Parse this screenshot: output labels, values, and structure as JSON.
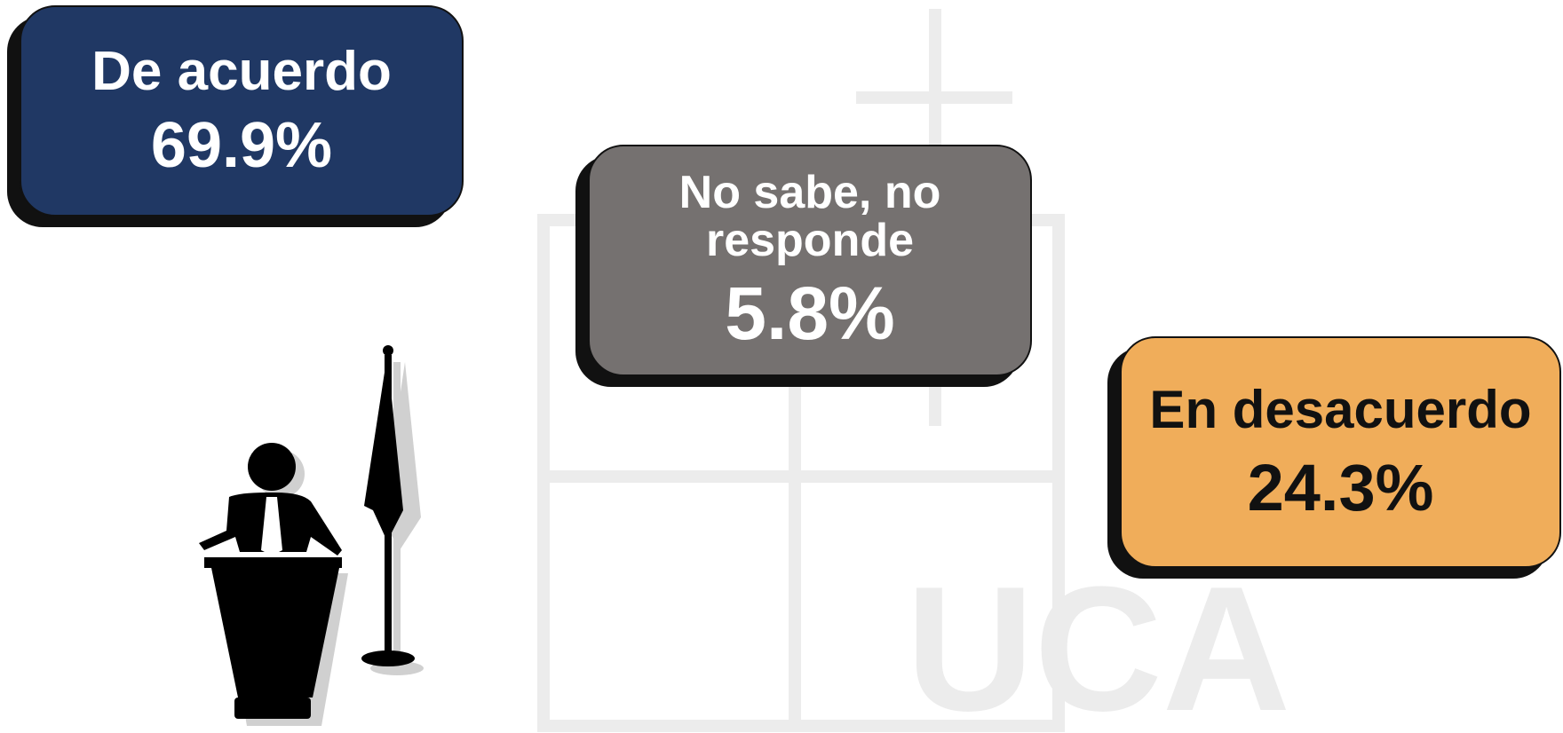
{
  "boxes": [
    {
      "label": "De acuerdo",
      "value": "69.9%"
    },
    {
      "label": "No sabe, no responde",
      "value": "5.8%"
    },
    {
      "label": "En desacuerdo",
      "value": "24.3%"
    }
  ]
}
